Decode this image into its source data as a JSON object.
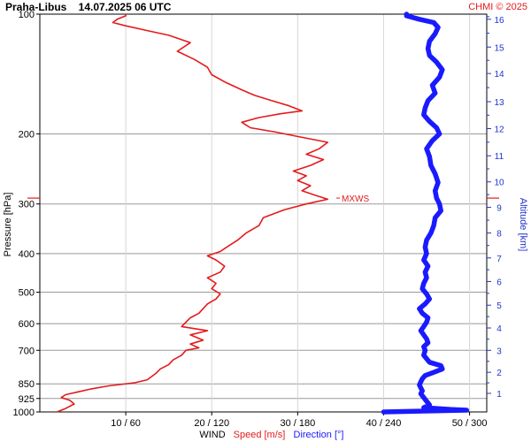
{
  "chart_data": {
    "type": "line",
    "title": "Praha-Libus    14.07.2025 06 UTC",
    "credit": "CHMI © 2025",
    "ylabel": "Pressure [hPa]",
    "ylabel_right": "Altitude [km]",
    "y_scale": "log",
    "ylim": [
      1000,
      100
    ],
    "y_ticks": [
      100,
      200,
      300,
      400,
      500,
      600,
      700,
      850,
      925,
      1000
    ],
    "y_tick_labels": [
      "100",
      "200",
      "300",
      "400",
      "500",
      "600",
      "700",
      "850",
      "925",
      "1000"
    ],
    "alt_ticks_km": [
      1,
      2,
      3,
      4,
      5,
      6,
      7,
      8,
      9,
      10,
      11,
      12,
      13,
      14,
      15,
      16
    ],
    "alt_tick_labels": [
      "1",
      "2",
      "3",
      "4",
      "5",
      "6",
      "7",
      "8",
      "9",
      "10",
      "11",
      "12",
      "13",
      "14",
      "15",
      "16"
    ],
    "alt_pressure_hpa": [
      898,
      795,
      700,
      615,
      539,
      470,
      410,
      355,
      306,
      264,
      227,
      194,
      166,
      141,
      121,
      103
    ],
    "x_primary_label": "Speed [m/s]",
    "x_secondary_label": "Direction [°]",
    "x_title": "WIND",
    "xlim_speed": [
      0,
      52
    ],
    "x_ticks_speed": [
      10,
      20,
      30,
      40,
      50
    ],
    "x_tick_labels": [
      "10 / 60",
      "20 / 120",
      "30 / 180",
      "40 / 240",
      "50 / 300"
    ],
    "grid": true,
    "colors": {
      "speed": "#e41a1c",
      "direction": "#1a1aff",
      "axis_right": "#2233cc",
      "grid": "#999999"
    },
    "annotations": [
      {
        "text": "MXWS",
        "pressure": 290,
        "speed": 34.5
      }
    ],
    "series": [
      {
        "name": "Speed [m/s]",
        "unit": "m/s",
        "points": [
          [
            1000,
            2.0
          ],
          [
            980,
            3.0
          ],
          [
            955,
            4.0
          ],
          [
            935,
            3.5
          ],
          [
            920,
            2.5
          ],
          [
            905,
            3.0
          ],
          [
            890,
            4.5
          ],
          [
            875,
            6.0
          ],
          [
            860,
            8.0
          ],
          [
            845,
            11.0
          ],
          [
            830,
            12.5
          ],
          [
            815,
            13.0
          ],
          [
            800,
            13.5
          ],
          [
            780,
            14.0
          ],
          [
            760,
            15.0
          ],
          [
            740,
            15.5
          ],
          [
            720,
            16.5
          ],
          [
            700,
            17.0
          ],
          [
            690,
            18.5
          ],
          [
            675,
            17.5
          ],
          [
            660,
            19.0
          ],
          [
            640,
            17.5
          ],
          [
            625,
            19.5
          ],
          [
            610,
            16.5
          ],
          [
            595,
            17.0
          ],
          [
            580,
            17.5
          ],
          [
            565,
            18.5
          ],
          [
            550,
            19.0
          ],
          [
            535,
            19.5
          ],
          [
            520,
            20.5
          ],
          [
            505,
            21.0
          ],
          [
            490,
            20.0
          ],
          [
            475,
            20.5
          ],
          [
            460,
            19.5
          ],
          [
            445,
            21.0
          ],
          [
            430,
            21.5
          ],
          [
            415,
            20.5
          ],
          [
            405,
            19.5
          ],
          [
            395,
            21.0
          ],
          [
            382,
            22.0
          ],
          [
            370,
            23.0
          ],
          [
            355,
            24.0
          ],
          [
            340,
            25.5
          ],
          [
            325,
            26.0
          ],
          [
            310,
            28.5
          ],
          [
            300,
            31.0
          ],
          [
            292,
            33.5
          ],
          [
            285,
            32.0
          ],
          [
            278,
            30.5
          ],
          [
            270,
            31.5
          ],
          [
            262,
            30.0
          ],
          [
            255,
            31.0
          ],
          [
            248,
            29.5
          ],
          [
            240,
            31.5
          ],
          [
            232,
            33.0
          ],
          [
            225,
            31.0
          ],
          [
            218,
            32.5
          ],
          [
            210,
            33.5
          ],
          [
            203,
            30.0
          ],
          [
            198,
            27.5
          ],
          [
            193,
            24.5
          ],
          [
            187,
            23.5
          ],
          [
            182,
            25.5
          ],
          [
            178,
            28.0
          ],
          [
            175,
            30.5
          ],
          [
            170,
            29.0
          ],
          [
            165,
            27.0
          ],
          [
            160,
            25.0
          ],
          [
            155,
            23.5
          ],
          [
            148,
            21.5
          ],
          [
            142,
            20.0
          ],
          [
            136,
            19.5
          ],
          [
            130,
            18.0
          ],
          [
            124,
            16.0
          ],
          [
            118,
            17.5
          ],
          [
            113,
            15.0
          ],
          [
            110,
            12.5
          ],
          [
            107,
            10.0
          ],
          [
            105,
            8.5
          ],
          [
            103,
            9.0
          ],
          [
            101,
            10.0
          ],
          [
            100,
            10.0
          ]
        ]
      },
      {
        "name": "Direction [°]",
        "unit": "deg",
        "points": [
          [
            1000,
            240
          ],
          [
            995,
            268
          ],
          [
            990,
            298
          ],
          [
            985,
            285
          ],
          [
            975,
            268
          ],
          [
            960,
            272
          ],
          [
            940,
            270
          ],
          [
            920,
            268
          ],
          [
            900,
            266
          ],
          [
            885,
            267
          ],
          [
            870,
            266
          ],
          [
            855,
            265
          ],
          [
            840,
            266
          ],
          [
            825,
            267
          ],
          [
            810,
            269
          ],
          [
            795,
            275
          ],
          [
            780,
            281
          ],
          [
            765,
            280
          ],
          [
            750,
            272
          ],
          [
            735,
            270
          ],
          [
            720,
            268
          ],
          [
            700,
            269
          ],
          [
            685,
            268
          ],
          [
            670,
            271
          ],
          [
            655,
            270
          ],
          [
            640,
            268
          ],
          [
            625,
            266
          ],
          [
            610,
            268
          ],
          [
            595,
            270
          ],
          [
            580,
            271
          ],
          [
            565,
            267
          ],
          [
            550,
            265
          ],
          [
            535,
            269
          ],
          [
            520,
            272
          ],
          [
            505,
            270
          ],
          [
            490,
            267
          ],
          [
            475,
            268
          ],
          [
            460,
            270
          ],
          [
            445,
            269
          ],
          [
            430,
            271
          ],
          [
            415,
            268
          ],
          [
            400,
            270
          ],
          [
            385,
            269
          ],
          [
            370,
            270
          ],
          [
            355,
            273
          ],
          [
            340,
            275
          ],
          [
            325,
            276
          ],
          [
            312,
            280
          ],
          [
            300,
            279
          ],
          [
            290,
            277
          ],
          [
            278,
            276
          ],
          [
            265,
            278
          ],
          [
            252,
            276
          ],
          [
            240,
            273
          ],
          [
            228,
            272
          ],
          [
            218,
            270
          ],
          [
            208,
            274
          ],
          [
            200,
            279
          ],
          [
            193,
            277
          ],
          [
            186,
            272
          ],
          [
            179,
            268
          ],
          [
            172,
            269
          ],
          [
            165,
            271
          ],
          [
            158,
            276
          ],
          [
            151,
            274
          ],
          [
            144,
            279
          ],
          [
            138,
            281
          ],
          [
            132,
            277
          ],
          [
            127,
            272
          ],
          [
            122,
            271
          ],
          [
            117,
            272
          ],
          [
            112,
            276
          ],
          [
            108,
            278
          ],
          [
            105,
            275
          ],
          [
            103,
            265
          ],
          [
            101,
            256
          ],
          [
            100,
            256
          ]
        ]
      }
    ]
  }
}
